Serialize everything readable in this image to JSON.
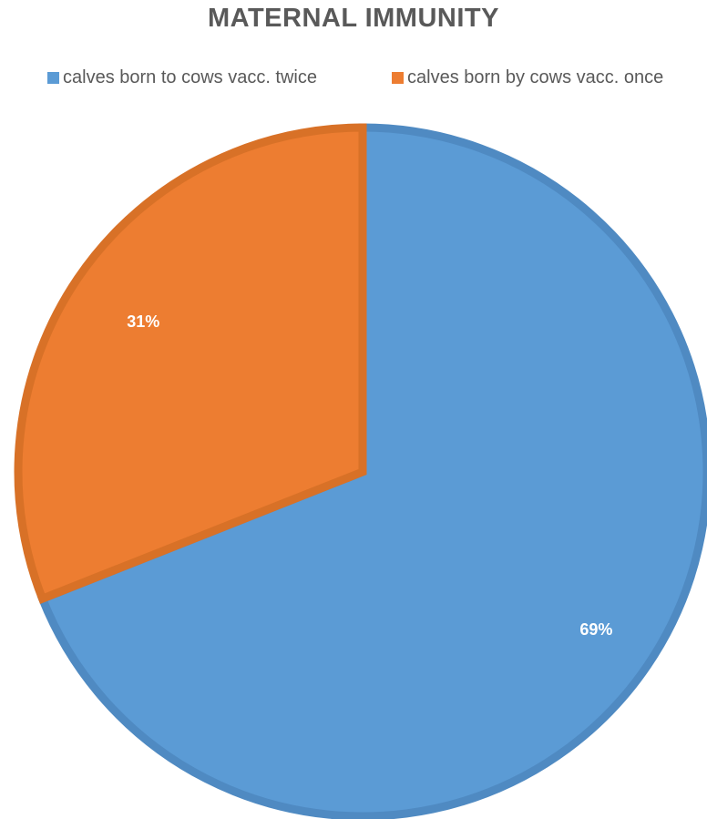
{
  "chart_data": {
    "type": "pie",
    "title": "MATERNAL IMMUNITY",
    "legend_position": "top",
    "categories": [
      "calves born to cows vacc. twice",
      "calves born by cows vacc. once"
    ],
    "values": [
      69,
      31
    ],
    "data_labels": [
      "69%",
      "31%"
    ],
    "colors": [
      "#5B9BD5",
      "#ED7D31"
    ],
    "border_colors": [
      "#4F8AC2",
      "#D87127"
    ]
  }
}
